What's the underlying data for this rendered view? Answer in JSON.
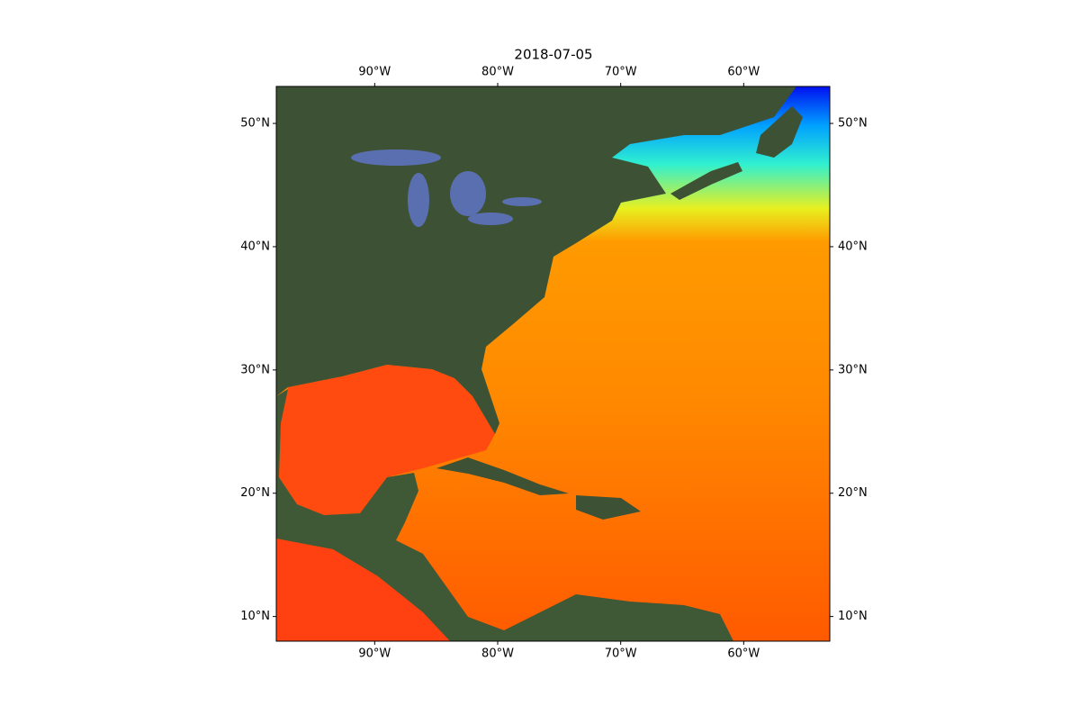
{
  "chart_data": {
    "type": "map",
    "title": "2018-07-05",
    "xlim": [
      -98,
      -53
    ],
    "ylim": [
      8,
      53
    ],
    "xticks": [
      {
        "value": -90,
        "label": "90°W"
      },
      {
        "value": -80,
        "label": "80°W"
      },
      {
        "value": -70,
        "label": "70°W"
      },
      {
        "value": -60,
        "label": "60°W"
      }
    ],
    "yticks": [
      {
        "value": 10,
        "label": "10°N"
      },
      {
        "value": 20,
        "label": "20°N"
      },
      {
        "value": 30,
        "label": "30°N"
      },
      {
        "value": 40,
        "label": "40°N"
      },
      {
        "value": 50,
        "label": "50°N"
      }
    ]
  }
}
